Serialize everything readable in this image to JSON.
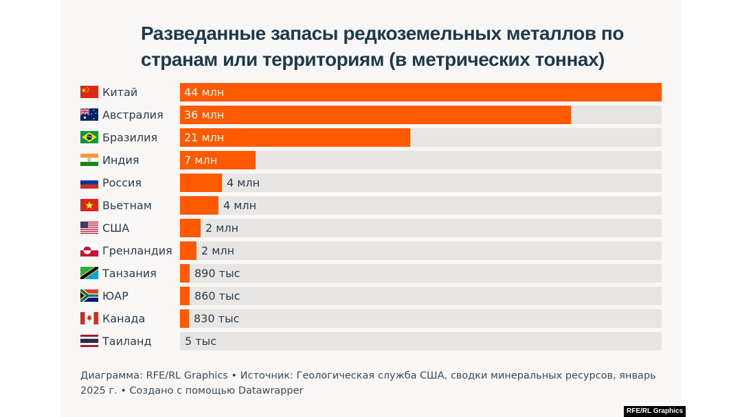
{
  "chart_data": {
    "type": "bar",
    "orientation": "horizontal",
    "title": "Разведанные запасы редкоземельных металлов по странам или территориям (в метрических тоннах)",
    "xlabel": "",
    "ylabel": "",
    "xlim": [
      0,
      44000000
    ],
    "grid": false,
    "legend": "none",
    "units": "metric tonnes",
    "categories": [
      "Китай",
      "Австралия",
      "Бразилия",
      "Индия",
      "Россия",
      "Вьетнам",
      "США",
      "Гренландия",
      "Танзания",
      "ЮАР",
      "Канада",
      "Таиланд"
    ],
    "flags": [
      "china-flag",
      "australia-flag",
      "brazil-flag",
      "india-flag",
      "russia-flag",
      "vietnam-flag",
      "usa-flag",
      "greenland-flag",
      "tanzania-flag",
      "south-africa-flag",
      "canada-flag",
      "thailand-flag"
    ],
    "values": [
      44000000,
      35700000,
      21000000,
      6900000,
      3800000,
      3500000,
      1900000,
      1500000,
      890000,
      860000,
      830000,
      4500
    ],
    "labels": [
      "44 млн",
      "36 млн",
      "21 млн",
      "7 млн",
      "4 млн",
      "4 млн",
      "2 млн",
      "2 млн",
      "890 тыс",
      "860 тыс",
      "830 тыс",
      "5 тыс"
    ],
    "colors": {
      "bar": "#ff5a00",
      "track": "#e7e6e4"
    }
  },
  "footer": {
    "text": "Диаграмма: RFE/RL Graphics • Источник: Геологическая служба США, сводки минеральных ресурсов, январь 2025 г. • Создано с помощью Datawrapper"
  },
  "watermark": "RFE/RL Graphics"
}
